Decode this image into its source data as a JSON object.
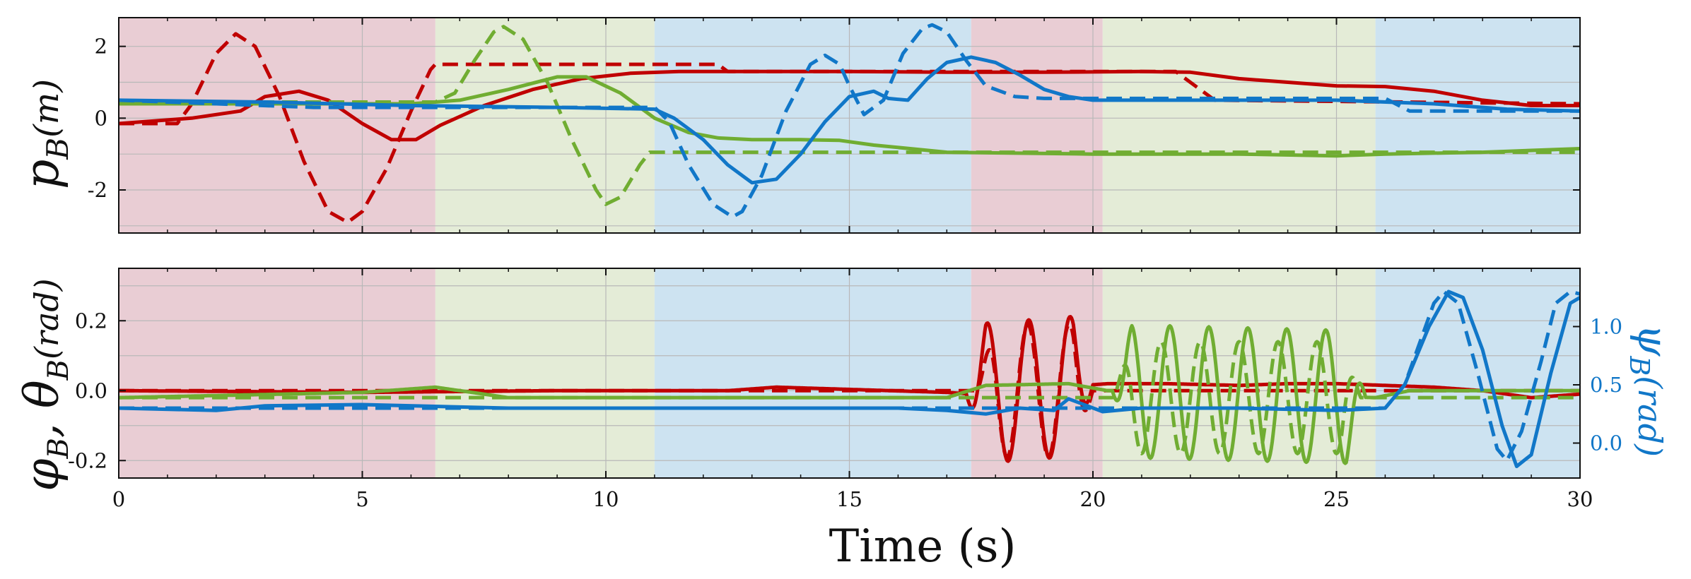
{
  "colors": {
    "x": "#c00000",
    "y": "#70ad32",
    "z": "#1177c8",
    "band_red": "#e9cdd4",
    "band_green": "#e4ecd7",
    "band_blue": "#cde3f1",
    "grid": "#b8b8b8"
  },
  "chart_data": [
    {
      "type": "line",
      "panel": "top",
      "ylabel": "p_B(m)",
      "ylabel_parts": {
        "main": "p",
        "sub": "B",
        "unit": "(m)"
      },
      "xlim": [
        0,
        30
      ],
      "ylim": [
        -3.2,
        2.8
      ],
      "x_ticks": [
        0,
        5,
        10,
        15,
        20,
        25,
        30
      ],
      "x_tick_labels": [
        "",
        "",
        "",
        "",
        "",
        "",
        ""
      ],
      "y_ticks": [
        -2,
        0,
        2
      ],
      "y_tick_labels": [
        "-2",
        "0",
        "2"
      ],
      "grid": true,
      "background_bands": [
        {
          "x0": 0,
          "x1": 6.5,
          "color": "red"
        },
        {
          "x0": 6.5,
          "x1": 11.0,
          "color": "green"
        },
        {
          "x0": 11.0,
          "x1": 17.5,
          "color": "blue"
        },
        {
          "x0": 17.5,
          "x1": 20.2,
          "color": "red"
        },
        {
          "x0": 20.2,
          "x1": 25.8,
          "color": "green"
        },
        {
          "x0": 25.8,
          "x1": 30,
          "color": "blue"
        }
      ],
      "series": [
        {
          "color": "x",
          "style": "dashed",
          "x": [
            0,
            1.2,
            1.5,
            2.0,
            2.4,
            2.8,
            3.3,
            3.8,
            4.3,
            4.7,
            5.0,
            5.5,
            6.0,
            6.4,
            6.5,
            12.3,
            12.5,
            21.7,
            22.5,
            30
          ],
          "y": [
            -0.15,
            -0.15,
            0.4,
            1.8,
            2.35,
            2.0,
            0.6,
            -1.2,
            -2.6,
            -2.9,
            -2.6,
            -1.4,
            0.2,
            1.35,
            1.5,
            1.5,
            1.3,
            1.3,
            0.5,
            0.4
          ]
        },
        {
          "color": "x",
          "style": "solid",
          "x": [
            0,
            1.5,
            2.5,
            3.0,
            3.7,
            4.3,
            5.0,
            5.6,
            6.1,
            6.6,
            7.5,
            8.5,
            9.5,
            10.5,
            11.5,
            13,
            15,
            17,
            19,
            21,
            22,
            23,
            24,
            25,
            26,
            27,
            28,
            29,
            30
          ],
          "y": [
            -0.15,
            0.0,
            0.2,
            0.6,
            0.75,
            0.5,
            -0.15,
            -0.6,
            -0.6,
            -0.2,
            0.35,
            0.8,
            1.1,
            1.25,
            1.3,
            1.3,
            1.3,
            1.28,
            1.28,
            1.3,
            1.28,
            1.1,
            1.0,
            0.9,
            0.88,
            0.75,
            0.5,
            0.35,
            0.35
          ]
        },
        {
          "color": "y",
          "style": "dashed",
          "x": [
            0,
            6.5,
            6.9,
            7.3,
            7.7,
            7.9,
            8.3,
            8.8,
            9.3,
            9.8,
            10.0,
            10.3,
            10.7,
            10.9,
            30
          ],
          "y": [
            0.45,
            0.45,
            0.7,
            1.6,
            2.4,
            2.55,
            2.2,
            1.0,
            -0.6,
            -2.0,
            -2.4,
            -2.2,
            -1.3,
            -0.95,
            -0.95
          ]
        },
        {
          "color": "y",
          "style": "solid",
          "x": [
            0,
            6.0,
            7.0,
            8.0,
            9.0,
            9.6,
            10.3,
            11.0,
            11.7,
            12.3,
            13,
            14,
            14.8,
            15.5,
            17,
            20,
            23,
            25,
            26,
            28,
            30
          ],
          "y": [
            0.4,
            0.4,
            0.5,
            0.8,
            1.15,
            1.15,
            0.7,
            0.0,
            -0.4,
            -0.55,
            -0.6,
            -0.6,
            -0.62,
            -0.75,
            -0.95,
            -1.0,
            -1.0,
            -1.05,
            -1.0,
            -0.95,
            -0.85
          ]
        },
        {
          "color": "z",
          "style": "dashed",
          "x": [
            0,
            4.0,
            11.0,
            11.3,
            11.7,
            12.2,
            12.6,
            12.8,
            13.2,
            13.7,
            14.2,
            14.5,
            14.8,
            15.0,
            15.3,
            15.7,
            16.1,
            16.5,
            16.7,
            17.0,
            17.4,
            17.8,
            18.4,
            19.0,
            20.0,
            22,
            24,
            26.0,
            26.5,
            30
          ],
          "y": [
            0.5,
            0.3,
            0.3,
            -0.1,
            -1.3,
            -2.4,
            -2.75,
            -2.6,
            -1.6,
            0.2,
            1.5,
            1.75,
            1.5,
            0.9,
            0.1,
            0.5,
            1.8,
            2.5,
            2.6,
            2.4,
            1.6,
            0.9,
            0.6,
            0.55,
            0.55,
            0.55,
            0.55,
            0.55,
            0.2,
            0.2
          ]
        },
        {
          "color": "z",
          "style": "solid",
          "x": [
            0,
            3,
            6,
            9,
            11.0,
            11.4,
            12.0,
            12.5,
            13.0,
            13.5,
            14.0,
            14.5,
            15.0,
            15.5,
            15.8,
            16.2,
            16.6,
            17.0,
            17.5,
            18.0,
            18.5,
            19.0,
            19.5,
            20.0,
            21,
            23,
            25,
            27,
            28.5,
            30
          ],
          "y": [
            0.5,
            0.45,
            0.35,
            0.3,
            0.25,
            0.0,
            -0.6,
            -1.3,
            -1.8,
            -1.7,
            -1.0,
            -0.1,
            0.6,
            0.75,
            0.55,
            0.5,
            1.1,
            1.55,
            1.7,
            1.55,
            1.2,
            0.8,
            0.6,
            0.5,
            0.5,
            0.5,
            0.5,
            0.4,
            0.25,
            0.2
          ]
        }
      ]
    },
    {
      "type": "line",
      "panel": "bottom",
      "xlabel": "Time (s)",
      "ylabel": "φ_B, θ_B (rad)",
      "ylabel_parts": {
        "phi": "φ",
        "theta": "θ",
        "sub": "B",
        "unit": "(rad)"
      },
      "ylabel_right": "ψ_B(rad)",
      "ylabel_right_parts": {
        "main": "ψ",
        "sub": "B",
        "unit": "(rad)"
      },
      "xlim": [
        0,
        30
      ],
      "ylim": [
        -0.25,
        0.35
      ],
      "ylim_right": [
        -0.3,
        1.5
      ],
      "x_ticks": [
        0,
        5,
        10,
        15,
        20,
        25,
        30
      ],
      "x_tick_labels": [
        "0",
        "5",
        "10",
        "15",
        "20",
        "25",
        "30"
      ],
      "y_ticks": [
        -0.2,
        0.0,
        0.2
      ],
      "y_tick_labels": [
        "-0.2",
        "0.0",
        "0.2"
      ],
      "y_ticks_right": [
        0.0,
        0.5,
        1.0
      ],
      "y_tick_labels_right": [
        "0.0",
        "0.5",
        "1.0"
      ],
      "grid": true,
      "background_bands": [
        {
          "x0": 0,
          "x1": 6.5,
          "color": "red"
        },
        {
          "x0": 6.5,
          "x1": 11.0,
          "color": "green"
        },
        {
          "x0": 11.0,
          "x1": 17.5,
          "color": "blue"
        },
        {
          "x0": 17.5,
          "x1": 20.2,
          "color": "red"
        },
        {
          "x0": 20.2,
          "x1": 25.8,
          "color": "green"
        },
        {
          "x0": 25.8,
          "x1": 30,
          "color": "blue"
        }
      ],
      "series": [
        {
          "color": "x",
          "style": "dashed",
          "axis": "left",
          "x": [
            0,
            17.0,
            17.5,
            30
          ],
          "y": [
            0.0,
            0.0,
            0.0,
            0.0
          ],
          "osc": {
            "x0": 17.6,
            "x1": 20.0,
            "amp": 0.19,
            "period": 0.85,
            "phase": 0.0
          }
        },
        {
          "color": "x",
          "style": "solid",
          "axis": "left",
          "x": [
            0,
            5,
            9,
            12.5,
            13.5,
            17.0,
            17.5,
            20.3,
            21.5,
            23,
            24,
            25,
            26,
            27,
            28,
            29,
            30
          ],
          "y": [
            0.0,
            -0.005,
            0.0,
            0.0,
            0.01,
            -0.005,
            -0.01,
            0.02,
            0.02,
            0.015,
            0.02,
            0.02,
            0.015,
            0.01,
            0.0,
            -0.02,
            -0.01
          ],
          "osc": {
            "x0": 17.4,
            "x1": 20.0,
            "amp": 0.2,
            "period": 0.85,
            "phase": 0.22
          }
        },
        {
          "color": "y",
          "style": "dashed",
          "axis": "left",
          "x": [
            0,
            20.0,
            30
          ],
          "y": [
            -0.02,
            -0.02,
            -0.02
          ],
          "osc": {
            "x0": 20.4,
            "x1": 25.5,
            "amp": 0.16,
            "period": 0.8,
            "phase": 0.0
          }
        },
        {
          "color": "y",
          "style": "solid",
          "axis": "left",
          "x": [
            0,
            5,
            6.5,
            8,
            12,
            17.0,
            17.8,
            19.5,
            20.3,
            25.8,
            26.5,
            30
          ],
          "y": [
            -0.02,
            -0.005,
            0.01,
            -0.02,
            -0.02,
            -0.02,
            0.015,
            0.02,
            0.0,
            -0.02,
            0.0,
            0.0
          ],
          "osc": {
            "x0": 20.4,
            "x1": 25.6,
            "amp": 0.19,
            "period": 0.8,
            "phase": 0.18
          }
        },
        {
          "color": "z",
          "style": "dashed",
          "axis": "right",
          "x": [
            0,
            26.0,
            26.4,
            26.7,
            27.0,
            27.2,
            27.5,
            27.9,
            28.3,
            28.5,
            28.8,
            29.2,
            29.5,
            29.8,
            30
          ],
          "y": [
            0.3,
            0.3,
            0.5,
            0.85,
            1.2,
            1.3,
            1.2,
            0.6,
            -0.05,
            -0.15,
            0.1,
            0.7,
            1.2,
            1.3,
            1.28
          ]
        },
        {
          "color": "z",
          "style": "solid",
          "axis": "right",
          "x": [
            0,
            2,
            3,
            5,
            8,
            12,
            16,
            17.0,
            17.8,
            18.5,
            19.2,
            19.5,
            20.2,
            21,
            23,
            25,
            26.0,
            26.4,
            26.9,
            27.3,
            27.6,
            28.0,
            28.4,
            28.7,
            29.0,
            29.4,
            29.8,
            30
          ],
          "y": [
            0.3,
            0.28,
            0.32,
            0.33,
            0.3,
            0.3,
            0.3,
            0.28,
            0.25,
            0.3,
            0.28,
            0.38,
            0.27,
            0.3,
            0.3,
            0.28,
            0.3,
            0.5,
            1.0,
            1.3,
            1.25,
            0.8,
            0.15,
            -0.2,
            -0.1,
            0.6,
            1.2,
            1.25
          ]
        }
      ]
    }
  ]
}
